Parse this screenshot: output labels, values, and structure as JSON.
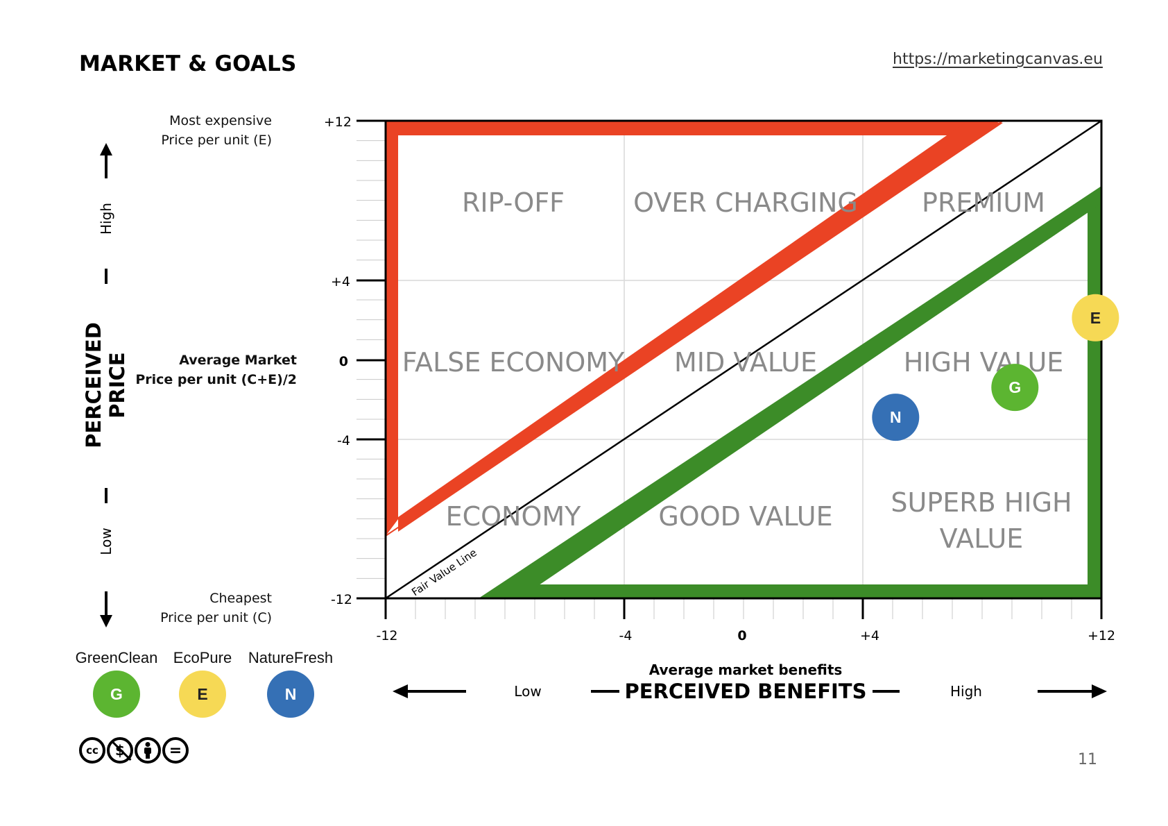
{
  "header": {
    "title": "MARKET & GOALS",
    "url": "https://marketingcanvas.eu"
  },
  "y_axis": {
    "top_label_line1": "Most expensive",
    "top_label_line2": "Price per unit (E)",
    "mid_label_line1": "Average Market",
    "mid_label_line2": "Price per unit (C+E)/2",
    "bottom_label_line1": "Cheapest",
    "bottom_label_line2": "Price per unit (C)",
    "title_line1": "PERCEIVED",
    "title_line2": "PRICE",
    "high": "High",
    "low": "Low"
  },
  "x_axis": {
    "subtitle": "Average market benefits",
    "title": "PERCEIVED BENEFITS",
    "low": "Low",
    "high": "High"
  },
  "zones": [
    {
      "label": "RIP-OFF"
    },
    {
      "label": "OVER CHARGING"
    },
    {
      "label": "PREMIUM"
    },
    {
      "label": "FALSE ECONOMY"
    },
    {
      "label": "MID VALUE"
    },
    {
      "label": "HIGH VALUE"
    },
    {
      "label": "ECONOMY"
    },
    {
      "label": "GOOD VALUE"
    },
    {
      "label": "SUPERB HIGH"
    },
    {
      "label": "VALUE"
    }
  ],
  "fair_value_line_label": "Fair Value Line",
  "chart_data": {
    "type": "scatter",
    "xlim": [
      -12,
      12
    ],
    "ylim": [
      -12,
      12
    ],
    "x_ticks": [
      "-12",
      "-4",
      "0",
      "+4",
      "+12"
    ],
    "y_ticks": [
      "+12",
      "+4",
      "0",
      "-4",
      "-12"
    ],
    "points": [
      {
        "initial": "E",
        "x": 11.8,
        "y": 2.1,
        "color": "#f6d955",
        "text_color": "#222222"
      },
      {
        "initial": "G",
        "x": 9.1,
        "y": -1.4,
        "color": "#5cb531",
        "text_color": "#ffffff"
      },
      {
        "initial": "N",
        "x": 5.1,
        "y": -2.9,
        "color": "#3570b5",
        "text_color": "#ffffff"
      }
    ]
  },
  "legend": [
    {
      "name": "GreenClean",
      "initial": "G",
      "color": "#5cb531",
      "text_color": "#ffffff"
    },
    {
      "name": "EcoPure",
      "initial": "E",
      "color": "#f6d955",
      "text_color": "#222222"
    },
    {
      "name": "NatureFresh",
      "initial": "N",
      "color": "#3570b5",
      "text_color": "#ffffff"
    }
  ],
  "colors": {
    "red_band": "#ea4324",
    "green_band": "#3c8c28",
    "grid": "#d9d9d9",
    "zone_text": "#8a8a8a"
  },
  "license_icons": [
    "cc",
    "$",
    "person",
    "="
  ],
  "page_number": "11"
}
